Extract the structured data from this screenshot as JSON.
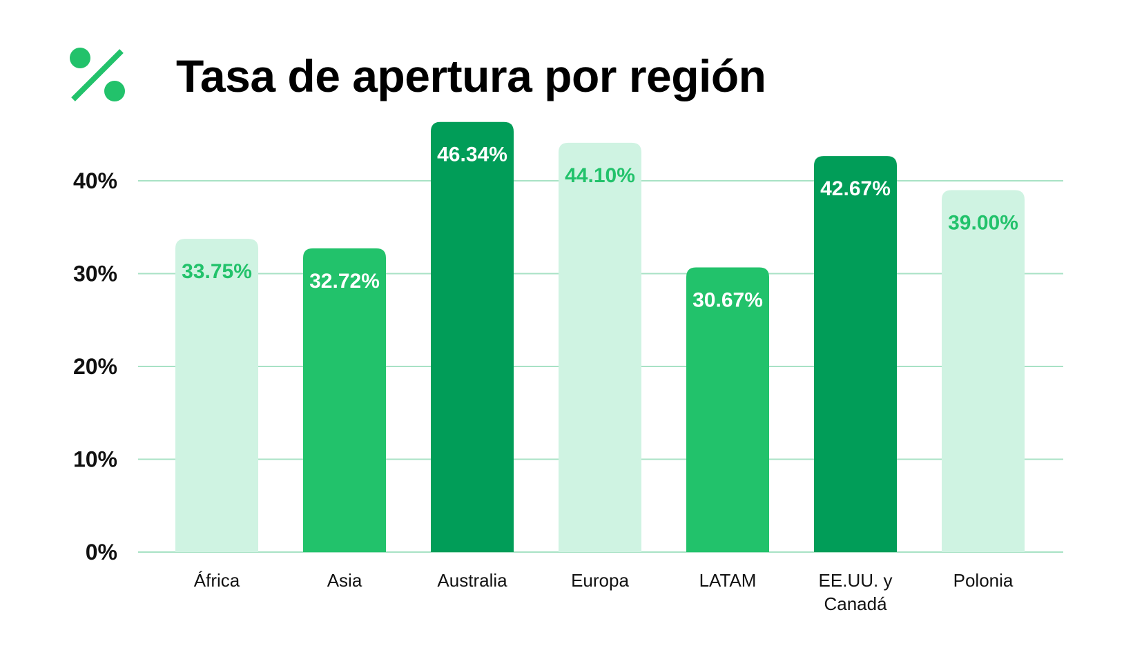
{
  "header": {
    "title": "Tasa de apertura por región",
    "icon": "percent-icon"
  },
  "colors": {
    "light": "#cff3e2",
    "medium": "#22c26b",
    "dark": "#019d58",
    "grid": "#a8e2c5",
    "label_on_light": "#22c26b",
    "label_on_dark": "#ffffff"
  },
  "chart_data": {
    "type": "bar",
    "title": "Tasa de apertura por región",
    "xlabel": "",
    "ylabel": "",
    "ylim": [
      0,
      46
    ],
    "yticks": [
      0,
      10,
      20,
      30,
      40
    ],
    "ytick_labels": [
      "0%",
      "10%",
      "20%",
      "30%",
      "40%"
    ],
    "grid": true,
    "categories": [
      [
        "África"
      ],
      [
        "Asia"
      ],
      [
        "Australia"
      ],
      [
        "Europa"
      ],
      [
        "LATAM"
      ],
      [
        "EE.UU. y",
        "Canadá"
      ],
      [
        "Polonia"
      ]
    ],
    "values": [
      33.75,
      32.72,
      46.34,
      44.1,
      30.67,
      42.67,
      39.0
    ],
    "value_labels": [
      "33.75%",
      "32.72%",
      "46.34%",
      "44.10%",
      "30.67%",
      "42.67%",
      "39.00%"
    ],
    "bar_styles": [
      "light",
      "medium",
      "dark",
      "light",
      "medium",
      "dark",
      "light"
    ]
  }
}
